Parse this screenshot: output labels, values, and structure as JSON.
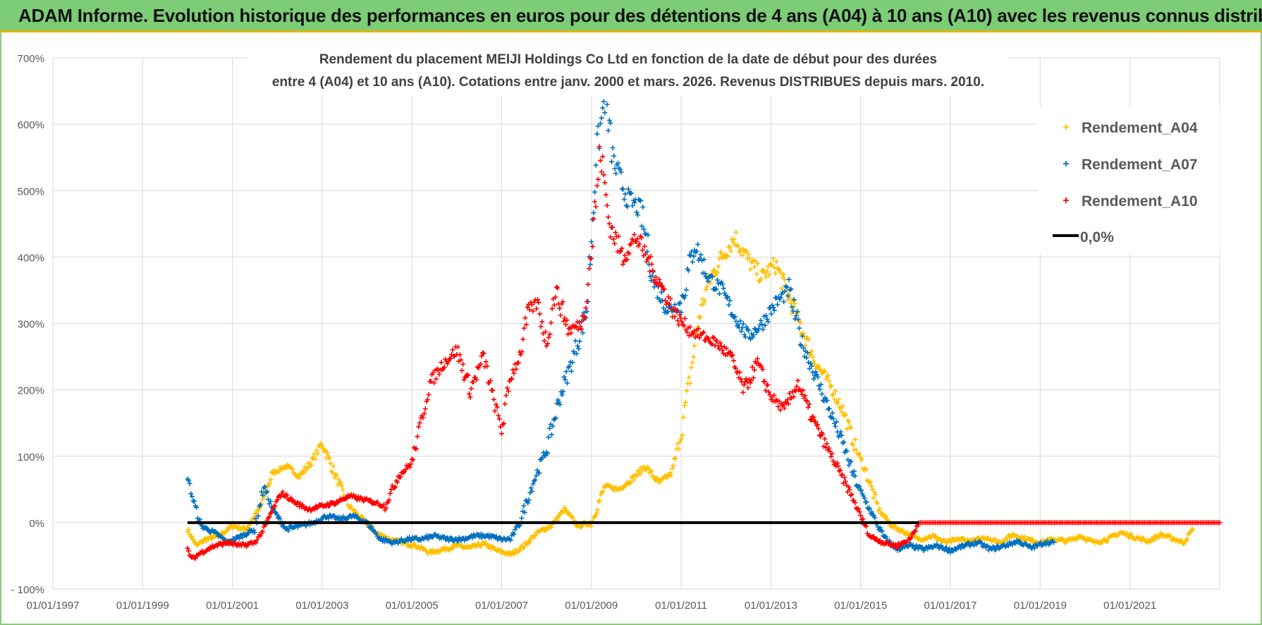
{
  "banner": {
    "title": "ADAM Informe. Evolution historique des performances en euros pour des détentions de 4 ans (A04) à 10 ans (A10) avec les revenus connus distribués"
  },
  "colors": {
    "banner_bg": "#7ccd76",
    "banner_accent": "#e5b500",
    "A04": "#ffc000",
    "A07": "#0070c0",
    "A10": "#ff0000",
    "zero_line": "#000000",
    "grid": "#d9d9d9"
  },
  "chart_data": {
    "type": "scatter",
    "title_line1": "Rendement du placement MEIJI Holdings Co Ltd en fonction de la date de début pour des durées",
    "title_line2": "entre 4 (A04) et 10 ans (A10).  Cotations entre janv. 2000 et mars. 2026. Revenus DISTRIBUES depuis mars. 2010.",
    "xlim": [
      1997.0,
      2023.0
    ],
    "ylim": [
      -100,
      700
    ],
    "x_ticks": [
      1997,
      1999,
      2001,
      2003,
      2005,
      2007,
      2009,
      2011,
      2013,
      2015,
      2017,
      2019,
      2021
    ],
    "x_tick_labels": [
      "01/01/1997",
      "01/01/1999",
      "01/01/2001",
      "01/01/2003",
      "01/01/2005",
      "01/01/2007",
      "01/01/2009",
      "01/01/2011",
      "01/01/2013",
      "01/01/2015",
      "01/01/2017",
      "01/01/2019",
      "01/01/2021"
    ],
    "y_ticks": [
      -100,
      0,
      100,
      200,
      300,
      400,
      500,
      600,
      700
    ],
    "y_tick_labels": [
      "- 100%",
      "0%",
      "100%",
      "200%",
      "300%",
      "400%",
      "500%",
      "600%",
      "700%"
    ],
    "legend": {
      "position": "top-right",
      "entries": [
        "Rendement_A04",
        "Rendement_A07",
        "Rendement_A10",
        "0,0%"
      ]
    },
    "series": [
      {
        "name": "Rendement_A04",
        "marker": "+",
        "x": [
          2000.0,
          2000.2,
          2000.4,
          2000.7,
          2001.0,
          2001.3,
          2001.6,
          2001.9,
          2002.2,
          2002.5,
          2002.8,
          2003.0,
          2003.3,
          2003.6,
          2003.9,
          2004.2,
          2004.5,
          2004.8,
          2005.1,
          2005.4,
          2005.7,
          2006.0,
          2006.3,
          2006.6,
          2006.9,
          2007.2,
          2007.5,
          2007.8,
          2008.1,
          2008.4,
          2008.7,
          2009.0,
          2009.3,
          2009.6,
          2009.9,
          2010.2,
          2010.5,
          2010.8,
          2011.0,
          2011.2,
          2011.4,
          2011.6,
          2011.9,
          2012.2,
          2012.5,
          2012.8,
          2013.1,
          2013.4,
          2013.7,
          2014.0,
          2014.3,
          2014.6,
          2014.9,
          2015.1,
          2015.4,
          2015.7,
          2016.0,
          2016.3,
          2016.6,
          2016.9,
          2017.2,
          2017.5,
          2017.8,
          2018.1,
          2018.4,
          2018.7,
          2019.0,
          2019.3,
          2019.6,
          2019.9,
          2020.2,
          2020.5,
          2020.8,
          2021.1,
          2021.4,
          2021.7,
          2022.0,
          2022.2,
          2022.4
        ],
        "y": [
          -10,
          -35,
          -25,
          -20,
          -5,
          -10,
          20,
          75,
          85,
          70,
          95,
          120,
          70,
          25,
          5,
          -15,
          -25,
          -30,
          -35,
          -45,
          -40,
          -35,
          -38,
          -32,
          -42,
          -48,
          -35,
          -15,
          -5,
          20,
          -5,
          0,
          55,
          50,
          65,
          85,
          60,
          75,
          135,
          220,
          310,
          360,
          400,
          430,
          395,
          370,
          390,
          340,
          290,
          240,
          210,
          170,
          110,
          80,
          20,
          -5,
          -15,
          -25,
          -20,
          -30,
          -25,
          -28,
          -22,
          -30,
          -18,
          -25,
          -30,
          -25,
          -28,
          -20,
          -30,
          -25,
          -15,
          -22,
          -28,
          -18,
          -25,
          -30,
          -10
        ]
      },
      {
        "name": "Rendement_A07",
        "marker": "+",
        "x": [
          2000.0,
          2000.1,
          2000.3,
          2000.6,
          2000.9,
          2001.2,
          2001.5,
          2001.7,
          2001.9,
          2002.2,
          2002.5,
          2002.8,
          2003.1,
          2003.4,
          2003.7,
          2004.0,
          2004.3,
          2004.6,
          2004.9,
          2005.2,
          2005.5,
          2005.8,
          2006.1,
          2006.4,
          2006.7,
          2007.0,
          2007.2,
          2007.4,
          2007.7,
          2008.0,
          2008.3,
          2008.6,
          2008.9,
          2009.1,
          2009.3,
          2009.5,
          2009.8,
          2010.1,
          2010.4,
          2010.7,
          2011.0,
          2011.3,
          2011.6,
          2011.9,
          2012.2,
          2012.5,
          2012.8,
          2013.1,
          2013.4,
          2013.7,
          2014.0,
          2014.3,
          2014.6,
          2014.9,
          2015.2,
          2015.5,
          2015.8,
          2016.1,
          2016.4,
          2016.7,
          2017.0,
          2017.3,
          2017.6,
          2017.9,
          2018.2,
          2018.5,
          2018.8,
          2019.1,
          2019.3
        ],
        "y": [
          70,
          40,
          -5,
          -15,
          -30,
          -20,
          -10,
          55,
          20,
          -10,
          -5,
          0,
          10,
          5,
          10,
          0,
          -25,
          -30,
          -25,
          -25,
          -20,
          -25,
          -25,
          -20,
          -20,
          -25,
          -25,
          0,
          60,
          110,
          190,
          250,
          320,
          550,
          640,
          540,
          490,
          470,
          360,
          320,
          330,
          420,
          370,
          350,
          310,
          280,
          300,
          330,
          350,
          270,
          220,
          170,
          120,
          60,
          20,
          -20,
          -40,
          -35,
          -40,
          -35,
          -42,
          -35,
          -30,
          -40,
          -35,
          -28,
          -38,
          -30,
          -30
        ]
      },
      {
        "name": "Rendement_A10",
        "marker": "+",
        "x": [
          2000.0,
          2000.1,
          2000.3,
          2000.6,
          2000.9,
          2001.2,
          2001.5,
          2001.7,
          2001.9,
          2002.1,
          2002.4,
          2002.7,
          2003.0,
          2003.3,
          2003.6,
          2003.9,
          2004.2,
          2004.4,
          2004.7,
          2005.0,
          2005.2,
          2005.4,
          2005.7,
          2006.0,
          2006.3,
          2006.6,
          2006.8,
          2007.0,
          2007.2,
          2007.4,
          2007.6,
          2007.8,
          2008.0,
          2008.2,
          2008.5,
          2008.8,
          2009.0,
          2009.2,
          2009.4,
          2009.7,
          2010.0,
          2010.3,
          2010.6,
          2010.9,
          2011.2,
          2011.5,
          2011.8,
          2012.1,
          2012.4,
          2012.7,
          2013.0,
          2013.3,
          2013.6,
          2013.9,
          2014.2,
          2014.5,
          2014.8,
          2015.0,
          2015.2,
          2015.5,
          2015.8,
          2016.1,
          2016.3,
          2016.6,
          2017.0,
          2017.5,
          2018.0,
          2018.5,
          2019.0,
          2019.5,
          2020.0,
          2020.5,
          2021.0,
          2021.5,
          2022.0,
          2022.5,
          2023.0
        ],
        "y": [
          -40,
          -55,
          -45,
          -35,
          -30,
          -35,
          -30,
          -10,
          20,
          45,
          30,
          20,
          25,
          30,
          40,
          35,
          30,
          25,
          70,
          90,
          150,
          210,
          240,
          260,
          200,
          250,
          190,
          140,
          220,
          250,
          320,
          330,
          270,
          350,
          290,
          300,
          410,
          560,
          450,
          400,
          430,
          390,
          350,
          310,
          290,
          280,
          270,
          250,
          200,
          240,
          190,
          170,
          210,
          160,
          120,
          80,
          40,
          10,
          -20,
          -30,
          -35,
          -25,
          0,
          0,
          0,
          0,
          0,
          0,
          0,
          0,
          0,
          0,
          0,
          0,
          0,
          0,
          0
        ]
      },
      {
        "name": "0,0%",
        "type": "line",
        "x": [
          2000.0,
          2016.3
        ],
        "y": [
          0,
          0
        ]
      }
    ]
  }
}
